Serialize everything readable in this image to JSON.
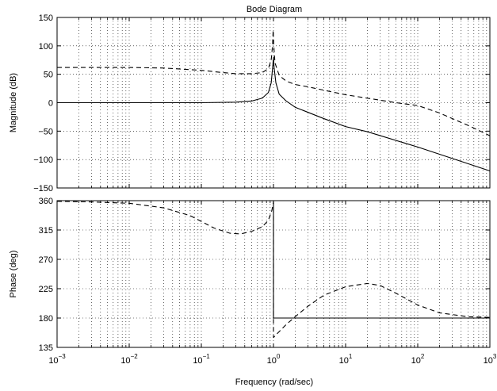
{
  "chart_data": {
    "type": "line",
    "title": "Bode Diagram",
    "xlabel": "Frequency  (rad/sec)",
    "xscale": "log",
    "xlim": [
      0.001,
      1000
    ],
    "x_ticks": [
      {
        "value": 0.001,
        "base": "10",
        "exp": "−3"
      },
      {
        "value": 0.01,
        "base": "10",
        "exp": "−2"
      },
      {
        "value": 0.1,
        "base": "10",
        "exp": "−1"
      },
      {
        "value": 1,
        "base": "10",
        "exp": "0"
      },
      {
        "value": 10,
        "base": "10",
        "exp": "1"
      },
      {
        "value": 100,
        "base": "10",
        "exp": "2"
      },
      {
        "value": 1000,
        "base": "10",
        "exp": "3"
      }
    ],
    "grid": true,
    "panels": [
      {
        "name": "magnitude",
        "ylabel": "Magnitude (dB)",
        "ylim": [
          -150,
          150
        ],
        "yticks": [
          150,
          100,
          50,
          0,
          -50,
          -100,
          -150
        ],
        "ytick_labels": [
          "150",
          "100",
          "50",
          "0",
          "−50",
          "−100",
          "−150"
        ],
        "series": [
          {
            "style": "solid",
            "points": [
              [
                0.001,
                0
              ],
              [
                0.1,
                0
              ],
              [
                0.3,
                1
              ],
              [
                0.5,
                3
              ],
              [
                0.7,
                8
              ],
              [
                0.85,
                18
              ],
              [
                0.93,
                35
              ],
              [
                0.97,
                60
              ],
              [
                1.0,
                80
              ],
              [
                1.02,
                62
              ],
              [
                1.08,
                35
              ],
              [
                1.2,
                15
              ],
              [
                1.5,
                3
              ],
              [
                2,
                -8
              ],
              [
                5,
                -28
              ],
              [
                10,
                -42
              ],
              [
                20,
                -51
              ],
              [
                100,
                -78
              ],
              [
                1000,
                -120
              ]
            ]
          },
          {
            "style": "dashed",
            "points": [
              [
                0.001,
                62
              ],
              [
                0.01,
                62
              ],
              [
                0.03,
                61
              ],
              [
                0.1,
                57
              ],
              [
                0.2,
                53
              ],
              [
                0.3,
                51
              ],
              [
                0.5,
                51
              ],
              [
                0.7,
                53
              ],
              [
                0.85,
                60
              ],
              [
                0.93,
                75
              ],
              [
                0.97,
                100
              ],
              [
                0.99,
                128
              ],
              [
                1.01,
                100
              ],
              [
                1.05,
                70
              ],
              [
                1.2,
                48
              ],
              [
                1.5,
                38
              ],
              [
                2,
                32
              ],
              [
                3,
                28
              ],
              [
                5,
                22
              ],
              [
                10,
                14
              ],
              [
                20,
                8
              ],
              [
                50,
                0
              ],
              [
                100,
                -5
              ],
              [
                200,
                -18
              ],
              [
                500,
                -40
              ],
              [
                1000,
                -58
              ]
            ]
          }
        ]
      },
      {
        "name": "phase",
        "ylabel": "Phase (deg)",
        "ylim": [
          135,
          360
        ],
        "yticks": [
          360,
          315,
          270,
          225,
          180,
          135
        ],
        "ytick_labels": [
          "360",
          "315",
          "270",
          "225",
          "180",
          "135"
        ],
        "series": [
          {
            "style": "solid",
            "points": [
              [
                0.001,
                360
              ],
              [
                0.99,
                360
              ],
              [
                1.0,
                359
              ],
              [
                1.0,
                180
              ],
              [
                1000,
                180
              ]
            ]
          },
          {
            "style": "dashed",
            "points": [
              [
                0.001,
                359
              ],
              [
                0.003,
                358
              ],
              [
                0.01,
                356
              ],
              [
                0.03,
                349
              ],
              [
                0.07,
                337
              ],
              [
                0.15,
                318
              ],
              [
                0.25,
                310
              ],
              [
                0.35,
                309
              ],
              [
                0.5,
                313
              ],
              [
                0.7,
                320
              ],
              [
                0.85,
                330
              ],
              [
                0.95,
                345
              ],
              [
                1.0,
                358
              ],
              [
                1.0,
                150
              ],
              [
                1.1,
                155
              ],
              [
                1.5,
                170
              ],
              [
                2,
                182
              ],
              [
                3,
                198
              ],
              [
                5,
                215
              ],
              [
                10,
                228
              ],
              [
                20,
                233
              ],
              [
                30,
                230
              ],
              [
                50,
                218
              ],
              [
                100,
                200
              ],
              [
                200,
                188
              ],
              [
                500,
                182
              ],
              [
                1000,
                181
              ]
            ]
          }
        ]
      }
    ]
  }
}
